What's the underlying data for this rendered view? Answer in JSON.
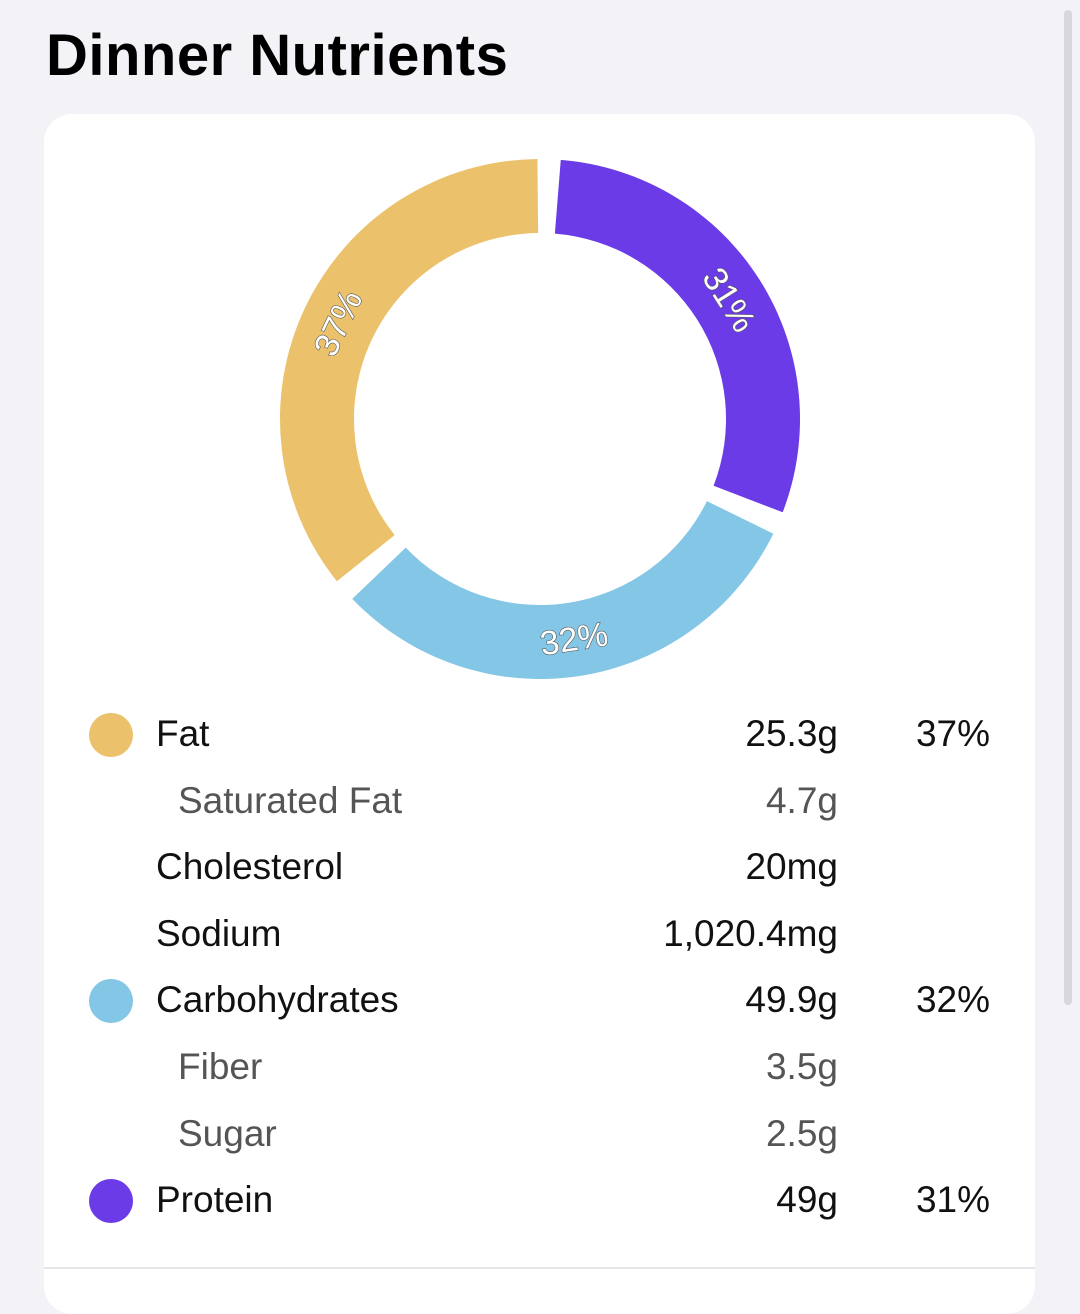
{
  "title": "Dinner Nutrients",
  "colors": {
    "fat": "#ebc16b",
    "carbohydrates": "#84c6e6",
    "protein": "#6a3be6"
  },
  "chart_data": {
    "type": "pie",
    "donut": true,
    "categories": [
      "Protein",
      "Carbohydrates",
      "Fat"
    ],
    "values": [
      31,
      32,
      37
    ],
    "labels": [
      "31%",
      "32%",
      "37%"
    ],
    "colors": [
      "#6a3be6",
      "#84c6e6",
      "#ebc16b"
    ]
  },
  "nutrients": [
    {
      "name": "Fat",
      "amount": "25.3g",
      "pct": "37%",
      "sub": false,
      "color": "#ebc16b"
    },
    {
      "name": "Saturated Fat",
      "amount": "4.7g",
      "pct": "",
      "sub": true,
      "color": ""
    },
    {
      "name": "Cholesterol",
      "amount": "20mg",
      "pct": "",
      "sub": false,
      "color": ""
    },
    {
      "name": "Sodium",
      "amount": "1,020.4mg",
      "pct": "",
      "sub": false,
      "color": ""
    },
    {
      "name": "Carbohydrates",
      "amount": "49.9g",
      "pct": "32%",
      "sub": false,
      "color": "#84c6e6"
    },
    {
      "name": "Fiber",
      "amount": "3.5g",
      "pct": "",
      "sub": true,
      "color": ""
    },
    {
      "name": "Sugar",
      "amount": "2.5g",
      "pct": "",
      "sub": true,
      "color": ""
    },
    {
      "name": "Protein",
      "amount": "49g",
      "pct": "31%",
      "sub": false,
      "color": "#6a3be6"
    }
  ]
}
